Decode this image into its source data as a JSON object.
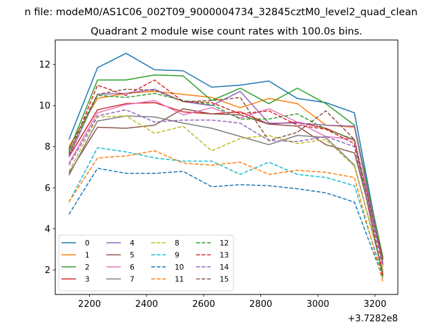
{
  "chart_data": {
    "type": "line",
    "suptitle": "n file: modeM0/AS1C06_002T09_9000004734_32845cztM0_level2_quad_clean",
    "title": "Quadrant 2 module wise count rates with 100.0s bins.",
    "xlabel": "",
    "ylabel": "",
    "x_offset_label": "+3.7282e8",
    "xlim": [
      2080,
      3280
    ],
    "ylim": [
      0.8,
      13.2
    ],
    "x_ticks": [
      2200,
      2400,
      2600,
      2800,
      3000,
      3200
    ],
    "y_ticks": [
      2,
      4,
      6,
      8,
      10,
      12
    ],
    "legend_position": "lower-left",
    "legend_columns": 4,
    "x": [
      2128,
      2228,
      2328,
      2428,
      2528,
      2628,
      2728,
      2828,
      2928,
      3028,
      3128,
      3228
    ],
    "series": [
      {
        "name": "0",
        "color": "#1f77b4",
        "dash": "solid",
        "values": [
          8.35,
          11.85,
          12.55,
          11.75,
          11.7,
          10.9,
          11.0,
          11.2,
          10.35,
          10.15,
          9.65,
          2.3
        ]
      },
      {
        "name": "1",
        "color": "#ff7f0e",
        "dash": "solid",
        "values": [
          8.0,
          10.35,
          10.6,
          10.7,
          10.55,
          10.4,
          9.9,
          10.35,
          10.1,
          9.05,
          8.95,
          2.2
        ]
      },
      {
        "name": "2",
        "color": "#2ca02c",
        "dash": "solid",
        "values": [
          7.8,
          11.25,
          11.25,
          11.5,
          11.45,
          10.25,
          10.85,
          10.1,
          10.85,
          10.1,
          9.05,
          2.6
        ]
      },
      {
        "name": "3",
        "color": "#d62728",
        "dash": "solid",
        "values": [
          7.5,
          9.8,
          10.1,
          10.15,
          9.7,
          9.6,
          9.7,
          9.1,
          9.2,
          8.9,
          8.3,
          2.5
        ]
      },
      {
        "name": "4",
        "color": "#9467bd",
        "dash": "solid",
        "values": [
          7.5,
          10.55,
          10.6,
          10.8,
          10.2,
          10.0,
          10.7,
          9.15,
          9.15,
          9.05,
          9.0,
          2.3
        ]
      },
      {
        "name": "5",
        "color": "#8c564b",
        "dash": "solid",
        "values": [
          6.7,
          8.95,
          8.9,
          9.05,
          9.85,
          9.6,
          9.55,
          9.1,
          9.0,
          8.1,
          7.7,
          2.5
        ]
      },
      {
        "name": "6",
        "color": "#e377c2",
        "dash": "solid",
        "values": [
          7.2,
          9.65,
          10.05,
          10.25,
          9.55,
          9.9,
          9.4,
          9.85,
          9.2,
          8.5,
          8.35,
          2.25
        ]
      },
      {
        "name": "7",
        "color": "#7f7f7f",
        "dash": "solid",
        "values": [
          6.6,
          9.25,
          9.5,
          9.45,
          9.15,
          8.9,
          8.5,
          8.1,
          8.55,
          8.45,
          7.1,
          1.9
        ]
      },
      {
        "name": "8",
        "color": "#bcbd22",
        "dash": "dashed",
        "values": [
          6.8,
          9.45,
          9.5,
          8.65,
          9.0,
          7.8,
          8.4,
          8.55,
          8.15,
          8.35,
          7.05,
          2.0
        ]
      },
      {
        "name": "9",
        "color": "#17becf",
        "dash": "dashed",
        "values": [
          5.3,
          7.95,
          7.75,
          7.45,
          7.3,
          7.3,
          6.65,
          7.25,
          6.65,
          6.5,
          6.1,
          1.7
        ]
      },
      {
        "name": "10",
        "color": "#1f77b4",
        "dash": "dashed",
        "values": [
          4.7,
          6.95,
          6.7,
          6.7,
          6.8,
          6.05,
          6.15,
          6.1,
          5.95,
          5.75,
          5.3,
          1.6
        ]
      },
      {
        "name": "11",
        "color": "#ff7f0e",
        "dash": "dashed",
        "values": [
          5.3,
          7.45,
          7.55,
          7.8,
          7.2,
          7.1,
          7.25,
          6.65,
          6.85,
          6.75,
          6.5,
          1.4
        ]
      },
      {
        "name": "12",
        "color": "#2ca02c",
        "dash": "dashed",
        "values": [
          7.7,
          10.5,
          10.4,
          10.6,
          10.25,
          10.05,
          9.35,
          9.35,
          9.6,
          8.85,
          8.35,
          1.6
        ]
      },
      {
        "name": "13",
        "color": "#d62728",
        "dash": "dashed",
        "values": [
          7.6,
          11.0,
          10.5,
          11.25,
          10.2,
          10.15,
          9.6,
          9.75,
          9.05,
          8.85,
          8.15,
          1.75
        ]
      },
      {
        "name": "14",
        "color": "#9467bd",
        "dash": "dashed",
        "values": [
          7.1,
          9.5,
          9.8,
          9.2,
          9.3,
          9.3,
          9.15,
          8.3,
          8.25,
          8.5,
          8.0,
          2.15
        ]
      },
      {
        "name": "15",
        "color": "#8c564b",
        "dash": "dashed",
        "values": [
          7.9,
          10.55,
          10.8,
          10.75,
          10.2,
          10.25,
          10.4,
          8.3,
          8.7,
          9.75,
          8.35,
          2.35
        ]
      }
    ]
  }
}
